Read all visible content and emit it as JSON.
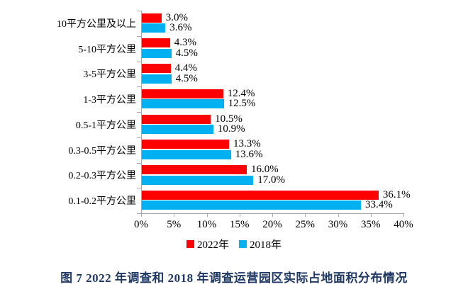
{
  "figure": {
    "caption": "图 7 2022 年调查和 2018 年调查运营园区实际占地面积分布情况",
    "caption_color": "#1f3864"
  },
  "chart_data": {
    "type": "bar",
    "orientation": "horizontal",
    "title": "",
    "xlabel": "",
    "ylabel": "",
    "categories": [
      "10平方公里及以上",
      "5-10平方公里",
      "3-5平方公里",
      "1-3平方公里",
      "0.5-1平方公里",
      "0.3-0.5平方公里",
      "0.2-0.3平方公里",
      "0.1-0.2平方公里"
    ],
    "series": [
      {
        "name": "2022年",
        "color": "#ff0000",
        "values": [
          3.0,
          4.3,
          4.4,
          12.4,
          10.5,
          13.3,
          16.0,
          36.1
        ]
      },
      {
        "name": "2018年",
        "color": "#00b0f0",
        "values": [
          3.6,
          4.5,
          4.5,
          12.5,
          10.9,
          13.6,
          17.0,
          33.4
        ]
      }
    ],
    "value_labels": [
      [
        "3.0%",
        "4.3%",
        "4.4%",
        "12.4%",
        "10.5%",
        "13.3%",
        "16.0%",
        "36.1%"
      ],
      [
        "3.6%",
        "4.5%",
        "4.5%",
        "12.5%",
        "10.9%",
        "13.6%",
        "17.0%",
        "33.4%"
      ]
    ],
    "xlim": [
      0,
      40
    ],
    "x_tick_labels": [
      "0%",
      "5%",
      "10%",
      "15%",
      "20%",
      "25%",
      "30%",
      "35%",
      "40%"
    ],
    "grid": false,
    "legend_position": "bottom",
    "axis_color": "#a6a6a6"
  }
}
